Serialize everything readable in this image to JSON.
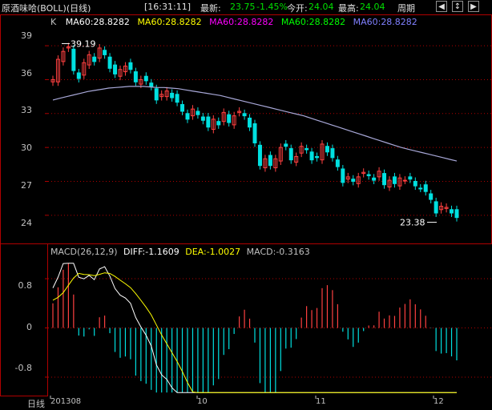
{
  "header": {
    "title": "原酒味哈(BOLL)(日线)",
    "time": "[16:31:11]",
    "latest_label": "最新:",
    "latest_value": "23.75",
    "change": "-1.45%",
    "open_label": "今开:",
    "open_value": "24.04",
    "high_label": "最高:",
    "high_value": "24.04",
    "period_label": "周期",
    "controls": [
      "◀",
      "↕",
      "▶"
    ]
  },
  "main_panel": {
    "k_label": "K",
    "ma_items": [
      {
        "text": "MA60:28.8282",
        "color": "#ffffff"
      },
      {
        "text": "MA60:28.8282",
        "color": "#ffff00"
      },
      {
        "text": "MA60:28.8282",
        "color": "#ff00ff"
      },
      {
        "text": "MA60:28.8282",
        "color": "#00ff00"
      },
      {
        "text": "MA60:28.8282",
        "color": "#8080ff"
      }
    ],
    "y_labels": [
      "39",
      "36",
      "33",
      "30",
      "27",
      "24"
    ],
    "high_marker": "39.19",
    "low_marker": "23.38"
  },
  "macd_panel": {
    "title": "MACD(26,12,9)",
    "diff": "DIFF:-1.1609",
    "dea": "DEA:-1.0027",
    "macd": "MACD:-0.3163",
    "y_labels": [
      "0.8",
      "0",
      "-0.8"
    ]
  },
  "footer": {
    "period": "日线",
    "dates": [
      "201308",
      "10",
      "11",
      "12"
    ]
  },
  "colors": {
    "up": "#ff4040",
    "down": "#00e0e0",
    "grid": "#b00000",
    "ma": "#a8a8d8",
    "diff": "#ffffff",
    "dea": "#ffff00"
  },
  "chart_data": {
    "type": "candlestick",
    "ylim": [
      22.5,
      40.0
    ],
    "closes": [
      36.0,
      37.8,
      38.5,
      38.9,
      36.8,
      36.1,
      37.5,
      38.2,
      37.6,
      38.8,
      38.2,
      37.0,
      36.5,
      36.9,
      37.2,
      36.9,
      35.8,
      36.0,
      35.9,
      35.4,
      34.2,
      34.7,
      35.0,
      34.4,
      34.0,
      33.2,
      32.5,
      33.4,
      32.9,
      32.4,
      31.8,
      32.5,
      32.0,
      33.1,
      32.2,
      32.8,
      33.2,
      32.8,
      31.8,
      30.4,
      28.4,
      29.0,
      28.4,
      29.0,
      30.0,
      30.1,
      28.9,
      29.2,
      30.1,
      29.8,
      28.9,
      29.1,
      30.3,
      29.6,
      29.1,
      28.3,
      26.9,
      27.4,
      27.0,
      27.4,
      27.8,
      27.5,
      27.1,
      27.9,
      26.7,
      27.1,
      26.8,
      27.3,
      27.1,
      27.2,
      26.6,
      26.4,
      26.1,
      25.4,
      24.2,
      24.8,
      24.7,
      24.2,
      23.8
    ],
    "ma60": [
      34.2,
      34.35,
      34.5,
      34.65,
      34.8,
      34.95,
      35.05,
      35.15,
      35.25,
      35.3,
      35.35,
      35.4,
      35.4,
      35.4,
      35.35,
      35.3,
      35.3,
      35.25,
      35.2,
      35.1,
      35.0,
      34.9,
      34.8,
      34.7,
      34.6,
      34.45,
      34.3,
      34.15,
      34.0,
      33.85,
      33.7,
      33.55,
      33.4,
      33.25,
      33.1,
      32.95,
      32.8,
      32.6,
      32.4,
      32.2,
      32.0,
      31.8,
      31.6,
      31.4,
      31.2,
      31.0,
      30.8,
      30.6,
      30.4,
      30.2,
      30.0,
      29.85,
      29.7,
      29.55,
      29.4,
      29.25,
      29.1,
      28.95,
      28.8
    ],
    "macd_series": {
      "diff_start": 0.65,
      "dea_start": 0.45,
      "ylim": [
        -1.1,
        1.1
      ]
    }
  }
}
